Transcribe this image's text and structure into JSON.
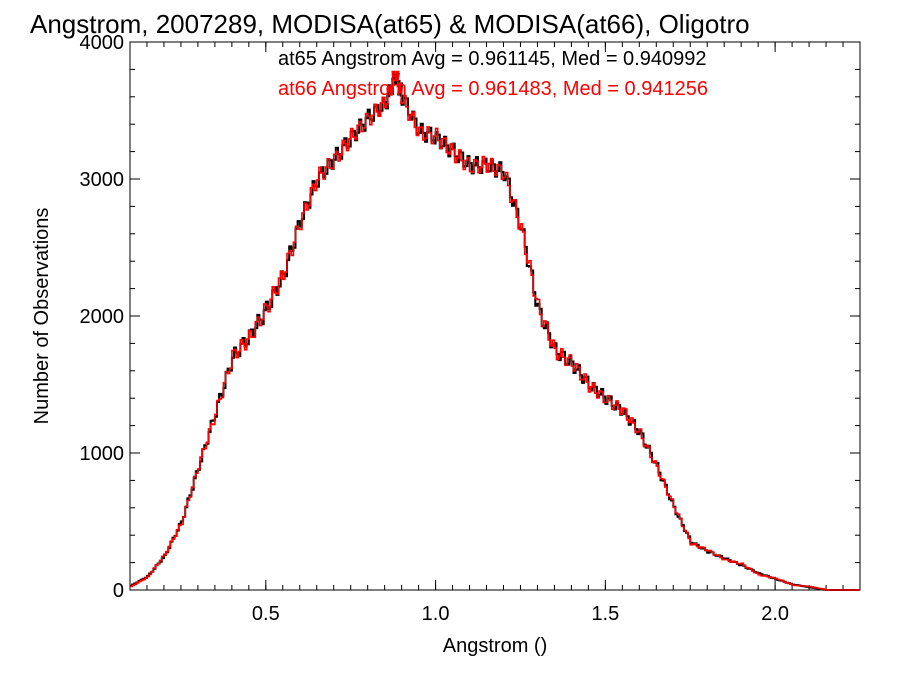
{
  "chart_data": {
    "type": "line",
    "title": "Angstrom, 2007289, MODISA(at65) & MODISA(at66), Oligotro",
    "xlabel": "Angstrom ()",
    "ylabel": "Number of Observations",
    "xlim": [
      0.1,
      2.25
    ],
    "ylim": [
      0,
      4000
    ],
    "x_ticks": [
      0.5,
      1.0,
      1.5,
      2.0
    ],
    "x_tick_labels": [
      "0.5",
      "1.0",
      "1.5",
      "2.0"
    ],
    "y_ticks": [
      0,
      1000,
      2000,
      3000,
      4000
    ],
    "y_tick_labels": [
      "0",
      "1000",
      "2000",
      "3000",
      "4000"
    ],
    "grid": false,
    "annotations": [
      {
        "text": "at65 Angstrom Avg = 0.961145, Med = 0.940992",
        "color": "#000000"
      },
      {
        "text": "at66 Angstrom Avg = 0.961483, Med = 0.941256",
        "color": "#ff0000"
      }
    ],
    "x": [
      0.1,
      0.15,
      0.2,
      0.25,
      0.3,
      0.35,
      0.4,
      0.45,
      0.5,
      0.55,
      0.6,
      0.65,
      0.7,
      0.75,
      0.8,
      0.85,
      0.88,
      0.9,
      0.95,
      1.0,
      1.05,
      1.1,
      1.15,
      1.2,
      1.25,
      1.3,
      1.35,
      1.4,
      1.45,
      1.5,
      1.55,
      1.6,
      1.65,
      1.7,
      1.75,
      1.8,
      1.85,
      1.9,
      1.95,
      2.0,
      2.05,
      2.1,
      2.15,
      2.2,
      2.25
    ],
    "series": [
      {
        "name": "at65",
        "color": "#000000",
        "values": [
          30,
          100,
          250,
          500,
          900,
          1300,
          1700,
          1850,
          2050,
          2300,
          2700,
          3000,
          3150,
          3300,
          3450,
          3550,
          3750,
          3600,
          3350,
          3300,
          3200,
          3100,
          3100,
          3050,
          2650,
          2050,
          1750,
          1650,
          1500,
          1400,
          1300,
          1150,
          900,
          600,
          350,
          280,
          230,
          180,
          120,
          80,
          40,
          20,
          0,
          0,
          0
        ]
      },
      {
        "name": "at66",
        "color": "#ff0000",
        "values": [
          25,
          95,
          260,
          490,
          910,
          1290,
          1710,
          1840,
          2060,
          2310,
          2690,
          3010,
          3140,
          3310,
          3440,
          3560,
          3780,
          3580,
          3340,
          3310,
          3190,
          3090,
          3110,
          3040,
          2640,
          2060,
          1740,
          1660,
          1490,
          1390,
          1310,
          1140,
          890,
          610,
          340,
          290,
          220,
          190,
          110,
          85,
          35,
          25,
          0,
          0,
          0
        ]
      }
    ]
  }
}
